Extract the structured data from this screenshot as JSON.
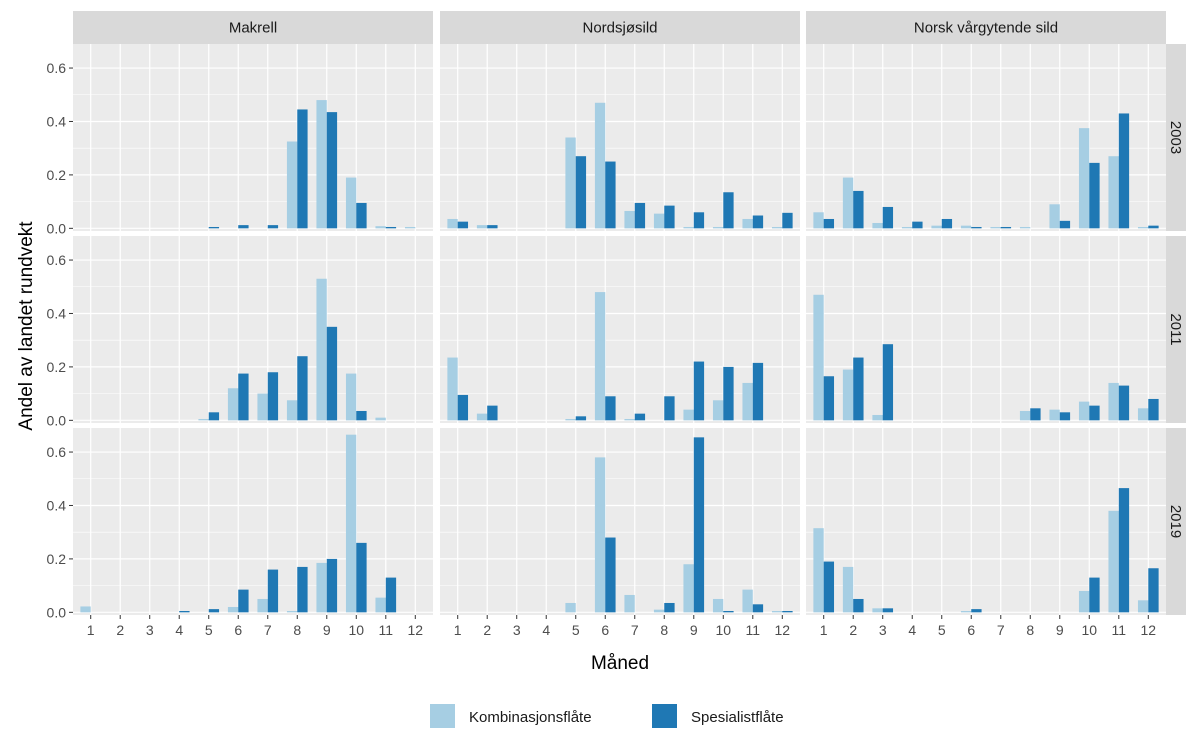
{
  "colors": {
    "kombinasjon": "#A6CEE3",
    "spesialist": "#1F78B4",
    "panel_bg": "#EBEBEB",
    "strip_bg": "#D9D9D9",
    "grid_major": "#FFFFFF"
  },
  "chart_data": {
    "type": "bar",
    "xlabel": "Måned",
    "ylabel": "Andel av landet rundvekt",
    "columns": [
      "Makrell",
      "Nordsjøsild",
      "Norsk vårgytende sild"
    ],
    "rows": [
      "2003",
      "2011",
      "2019"
    ],
    "months": [
      1,
      2,
      3,
      4,
      5,
      6,
      7,
      8,
      9,
      10,
      11,
      12
    ],
    "x_tick_labels": [
      "1",
      "2",
      "3",
      "4",
      "5",
      "6",
      "7",
      "8",
      "9",
      "10",
      "11",
      "12"
    ],
    "y_ticks": [
      0.0,
      0.2,
      0.4,
      0.6
    ],
    "y_tick_labels": [
      "0.0",
      "0.2",
      "0.4",
      "0.6"
    ],
    "ylim": [
      -0.01,
      0.69
    ],
    "grid": true,
    "legend": {
      "position": "bottom",
      "entries": [
        "Kombinasjonsflåte",
        "Spesialistflåte"
      ]
    },
    "series": [
      {
        "name": "Kombinasjonsflåte",
        "color_key": "kombinasjon"
      },
      {
        "name": "Spesialistflåte",
        "color_key": "spesialist"
      }
    ],
    "panels": [
      {
        "row": "2003",
        "column": "Makrell",
        "Kombinasjonsflåte": [
          0,
          0,
          0,
          0,
          0,
          0,
          0,
          0.325,
          0.48,
          0.19,
          0.008,
          0.005
        ],
        "Spesialistflåte": [
          0,
          0,
          0,
          0,
          0.005,
          0.012,
          0.012,
          0.445,
          0.435,
          0.095,
          0.005,
          0
        ]
      },
      {
        "row": "2003",
        "column": "Nordsjøsild",
        "Kombinasjonsflåte": [
          0.035,
          0.012,
          0,
          0,
          0.34,
          0.47,
          0.065,
          0.055,
          0.005,
          0.005,
          0.035,
          0.005
        ],
        "Spesialistflåte": [
          0.025,
          0.012,
          0,
          0,
          0.27,
          0.25,
          0.095,
          0.085,
          0.06,
          0.135,
          0.048,
          0.058
        ]
      },
      {
        "row": "2003",
        "column": "Norsk vårgytende sild",
        "Kombinasjonsflåte": [
          0.06,
          0.19,
          0.02,
          0.005,
          0.01,
          0.01,
          0.005,
          0.005,
          0.09,
          0.375,
          0.27,
          0.005
        ],
        "Spesialistflåte": [
          0.035,
          0.14,
          0.08,
          0.025,
          0.035,
          0.005,
          0.005,
          0,
          0.028,
          0.245,
          0.43,
          0.01
        ]
      },
      {
        "row": "2011",
        "column": "Makrell",
        "Kombinasjonsflåte": [
          0,
          0,
          0,
          0,
          0.005,
          0.12,
          0.1,
          0.075,
          0.53,
          0.175,
          0.01,
          0
        ],
        "Spesialistflåte": [
          0,
          0,
          0,
          0,
          0.03,
          0.175,
          0.18,
          0.24,
          0.35,
          0.035,
          0,
          0
        ]
      },
      {
        "row": "2011",
        "column": "Nordsjøsild",
        "Kombinasjonsflåte": [
          0.235,
          0.025,
          0,
          0,
          0.005,
          0.48,
          0.005,
          0,
          0.04,
          0.075,
          0.14,
          0
        ],
        "Spesialistflåte": [
          0.095,
          0.055,
          0,
          0,
          0.015,
          0.09,
          0.025,
          0.09,
          0.22,
          0.2,
          0.215,
          0
        ]
      },
      {
        "row": "2011",
        "column": "Norsk vårgytende sild",
        "Kombinasjonsflåte": [
          0.47,
          0.19,
          0.02,
          0,
          0,
          0,
          0,
          0.035,
          0.04,
          0.07,
          0.14,
          0.045
        ],
        "Spesialistflåte": [
          0.165,
          0.235,
          0.285,
          0,
          0,
          0,
          0,
          0.045,
          0.03,
          0.055,
          0.13,
          0.08
        ]
      },
      {
        "row": "2019",
        "column": "Makrell",
        "Kombinasjonsflåte": [
          0.022,
          0,
          0,
          0,
          0,
          0.02,
          0.05,
          0.005,
          0.185,
          0.665,
          0.055,
          0
        ],
        "Spesialistflåte": [
          0,
          0,
          0,
          0.005,
          0.012,
          0.085,
          0.16,
          0.17,
          0.2,
          0.26,
          0.13,
          0
        ]
      },
      {
        "row": "2019",
        "column": "Nordsjøsild",
        "Kombinasjonsflåte": [
          0,
          0,
          0,
          0,
          0.035,
          0.58,
          0.065,
          0.01,
          0.18,
          0.05,
          0.085,
          0.005
        ],
        "Spesialistflåte": [
          0,
          0,
          0,
          0,
          0,
          0.28,
          0,
          0.035,
          0.655,
          0.005,
          0.03,
          0.005
        ]
      },
      {
        "row": "2019",
        "column": "Norsk vårgytende sild",
        "Kombinasjonsflåte": [
          0.315,
          0.17,
          0.015,
          0,
          0,
          0.005,
          0,
          0,
          0,
          0.08,
          0.38,
          0.045
        ],
        "Spesialistflåte": [
          0.19,
          0.05,
          0.015,
          0,
          0,
          0.012,
          0,
          0,
          0,
          0.13,
          0.465,
          0.165
        ]
      }
    ]
  }
}
